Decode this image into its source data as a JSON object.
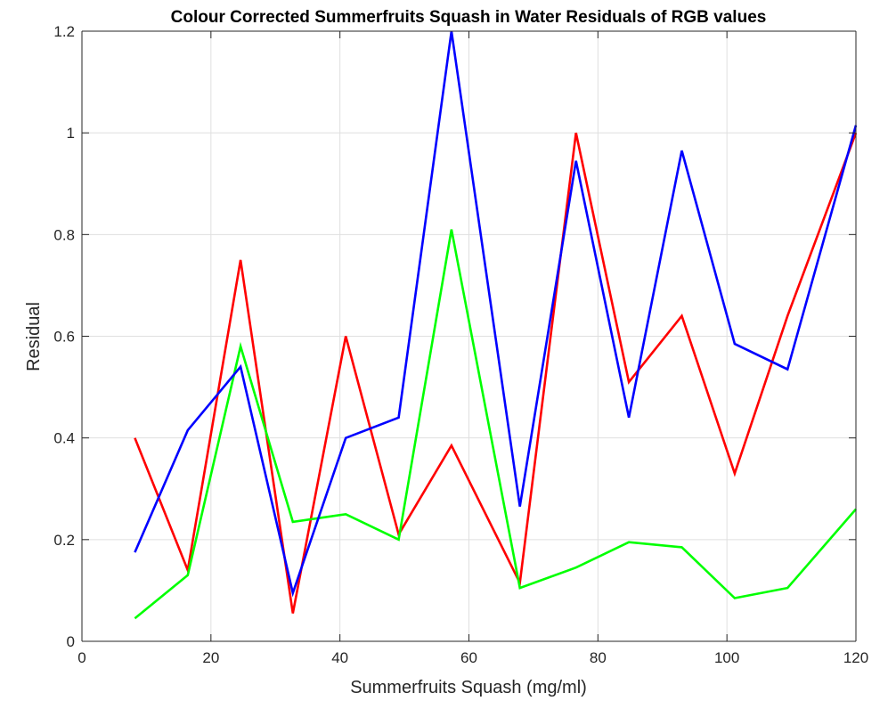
{
  "chart_data": {
    "type": "line",
    "title": "Colour Corrected Summerfruits Squash in Water Residuals of RGB values",
    "xlabel": "Summerfruits Squash (mg/ml)",
    "ylabel": "Residual",
    "xlim": [
      0,
      120
    ],
    "ylim": [
      0,
      1.2
    ],
    "xticks": [
      0,
      20,
      40,
      60,
      80,
      100,
      120
    ],
    "yticks": [
      0,
      0.2,
      0.4,
      0.6,
      0.8,
      1,
      1.2
    ],
    "xtick_labels": [
      "0",
      "20",
      "40",
      "60",
      "80",
      "100",
      "120"
    ],
    "ytick_labels": [
      "0",
      "0.2",
      "0.4",
      "0.6",
      "0.8",
      "1",
      "1.2"
    ],
    "grid": true,
    "legend": "none",
    "x": [
      8.2,
      16.4,
      24.6,
      32.7,
      40.9,
      49.1,
      57.3,
      67.9,
      76.6,
      84.8,
      93.0,
      101.2,
      109.4,
      120
    ],
    "series": [
      {
        "color": "#ff0000",
        "values": [
          0.4,
          0.14,
          0.75,
          0.055,
          0.6,
          0.21,
          0.385,
          0.115,
          1.0,
          0.51,
          0.64,
          0.33,
          0.64,
          1.0
        ]
      },
      {
        "color": "#00ff00",
        "values": [
          0.045,
          0.13,
          0.58,
          0.235,
          0.25,
          0.2,
          0.81,
          0.105,
          0.145,
          0.195,
          0.185,
          0.085,
          0.105,
          0.26
        ]
      },
      {
        "color": "#0000ff",
        "values": [
          0.175,
          0.415,
          0.54,
          0.095,
          0.4,
          0.44,
          1.2,
          0.265,
          0.945,
          0.44,
          0.965,
          0.585,
          0.535,
          1.015
        ]
      }
    ]
  }
}
